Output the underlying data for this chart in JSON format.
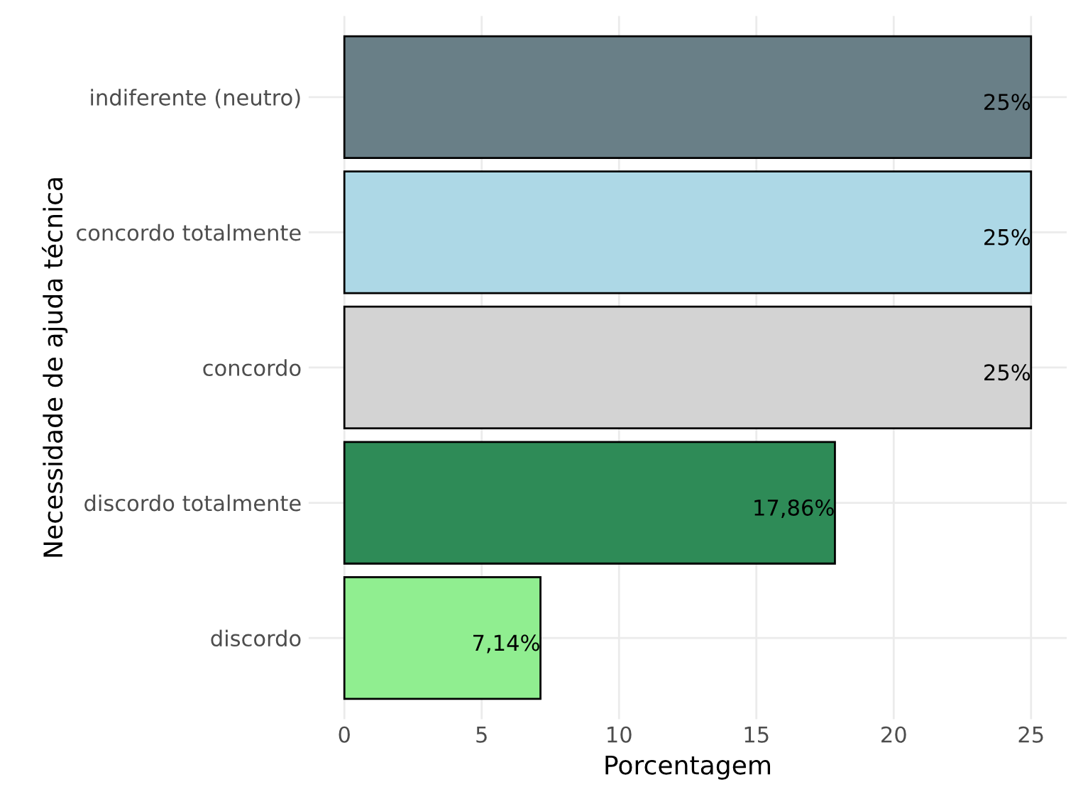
{
  "chart_data": {
    "type": "bar",
    "orientation": "horizontal",
    "xlabel": "Porcentagem",
    "ylabel": "Necessidade de ajuda técnica",
    "categories": [
      "indiferente (neutro)",
      "concordo totalmente",
      "concordo",
      "discordo totalmente",
      "discordo"
    ],
    "values": [
      25,
      25,
      25,
      17.86,
      7.14
    ],
    "colors": [
      "#697f87",
      "#add8e6",
      "#d3d3d3",
      "#2e8b57",
      "#90ee90"
    ],
    "value_labels": [
      "25%",
      "25%",
      "25%",
      "17,86%",
      "7,14%"
    ],
    "xlim": [
      -1.3,
      26.3
    ],
    "xticks": [
      0,
      5,
      10,
      15,
      20,
      25
    ],
    "grid": true
  }
}
